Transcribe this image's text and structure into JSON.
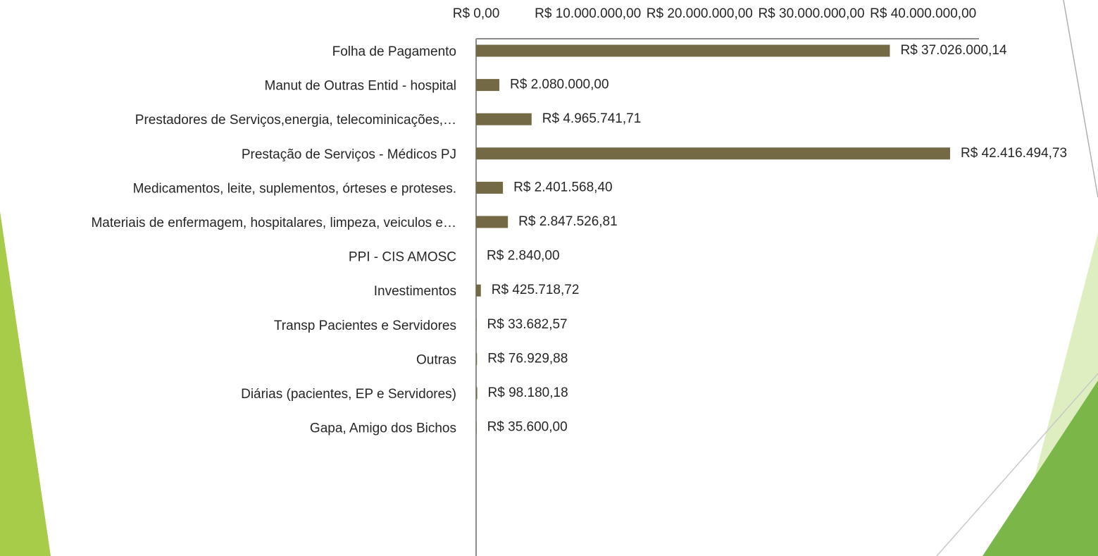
{
  "chart_data": {
    "type": "barh",
    "categories": [
      "Folha de Pagamento",
      "Manut de Outras Entid - hospital",
      "Prestadores de Serviços,energia, telecominicações,…",
      "Prestação de Serviços - Médicos PJ",
      "Medicamentos, leite, suplementos, órteses e proteses.",
      "Materiais de enfermagem, hospitalares, limpeza, veiculos e…",
      "PPI - CIS AMOSC",
      "Investimentos",
      "Transp Pacientes e Servidores",
      "Outras",
      "Diárias (pacientes, EP e Servidores)",
      "Gapa, Amigo dos Bichos"
    ],
    "values": [
      37026000.14,
      2080000.0,
      4965741.71,
      42416494.73,
      2401568.4,
      2847526.81,
      2840.0,
      425718.72,
      33682.57,
      76929.88,
      98180.18,
      35600.0
    ],
    "value_labels": [
      "R$ 37.026.000,14",
      "R$ 2.080.000,00",
      "R$ 4.965.741,71",
      "R$ 42.416.494,73",
      "R$ 2.401.568,40",
      "R$ 2.847.526,81",
      "R$ 2.840,00",
      "R$ 425.718,72",
      "R$ 33.682,57",
      "R$ 76.929,88",
      "R$ 98.180,18",
      "R$ 35.600,00"
    ],
    "color": "#736a45",
    "xlim": [
      0,
      45000000
    ],
    "xticks": [
      {
        "value": 0,
        "label": "R$ 0,00"
      },
      {
        "value": 10000000,
        "label": "R$ 10.000.000,00"
      },
      {
        "value": 20000000,
        "label": "R$ 20.000.000,00"
      },
      {
        "value": 30000000,
        "label": "R$ 30.000.000,00"
      },
      {
        "value": 40000000,
        "label": "R$ 40.000.000,00"
      }
    ],
    "grid": false
  }
}
